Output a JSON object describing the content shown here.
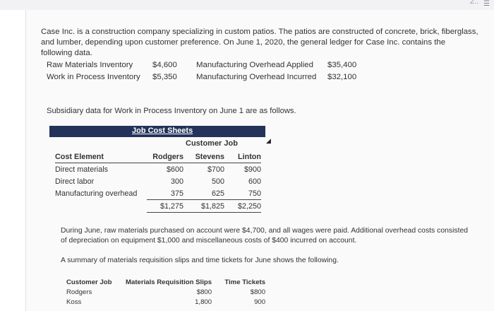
{
  "corner": {
    "text": "2..",
    "icon": "list-icon"
  },
  "intro": "Case Inc. is a construction company specializing in custom patios. The patios are constructed of concrete, brick, fiberglass, and lumber, depending upon customer preference. On June 1, 2020, the general ledger for Case Inc. contains the following data.",
  "ledger": [
    {
      "left_label": "Raw Materials Inventory",
      "left_value": "$4,600",
      "right_label": "Manufacturing Overhead Applied",
      "right_value": "$35,400"
    },
    {
      "left_label": "Work in Process Inventory",
      "left_value": "$5,350",
      "right_label": "Manufacturing Overhead Incurred",
      "right_value": "$32,100"
    }
  ],
  "subsidiary": "Subsidiary data for Work in Process Inventory on June 1 are as follows.",
  "job_cost": {
    "title": "Job Cost Sheets",
    "customer_job": "Customer Job",
    "headers": [
      "Cost Element",
      "Rodgers",
      "Stevens",
      "Linton"
    ],
    "rows": [
      [
        "Direct materials",
        "$600",
        "$700",
        "$900"
      ],
      [
        "Direct labor",
        "300",
        "500",
        "600"
      ],
      [
        "Manufacturing overhead",
        "375",
        "625",
        "750"
      ]
    ],
    "totals": [
      "$1,275",
      "$1,825",
      "$2,250"
    ]
  },
  "june_paragraph": "During June, raw materials purchased on account were $4,700, and all wages were paid. Additional overhead costs consisted of depreciation on equipment $1,000 and miscellaneous costs of $400 incurred on account.",
  "summary_line": "A summary of materials requisition slips and time tickets for June shows the following.",
  "requisitions": {
    "headers": [
      "Customer Job",
      "Materials Requisition Slips",
      "Time Tickets"
    ],
    "rows": [
      [
        "Rodgers",
        "$800",
        "$800"
      ],
      [
        "Koss",
        "1,800",
        "900"
      ]
    ]
  }
}
